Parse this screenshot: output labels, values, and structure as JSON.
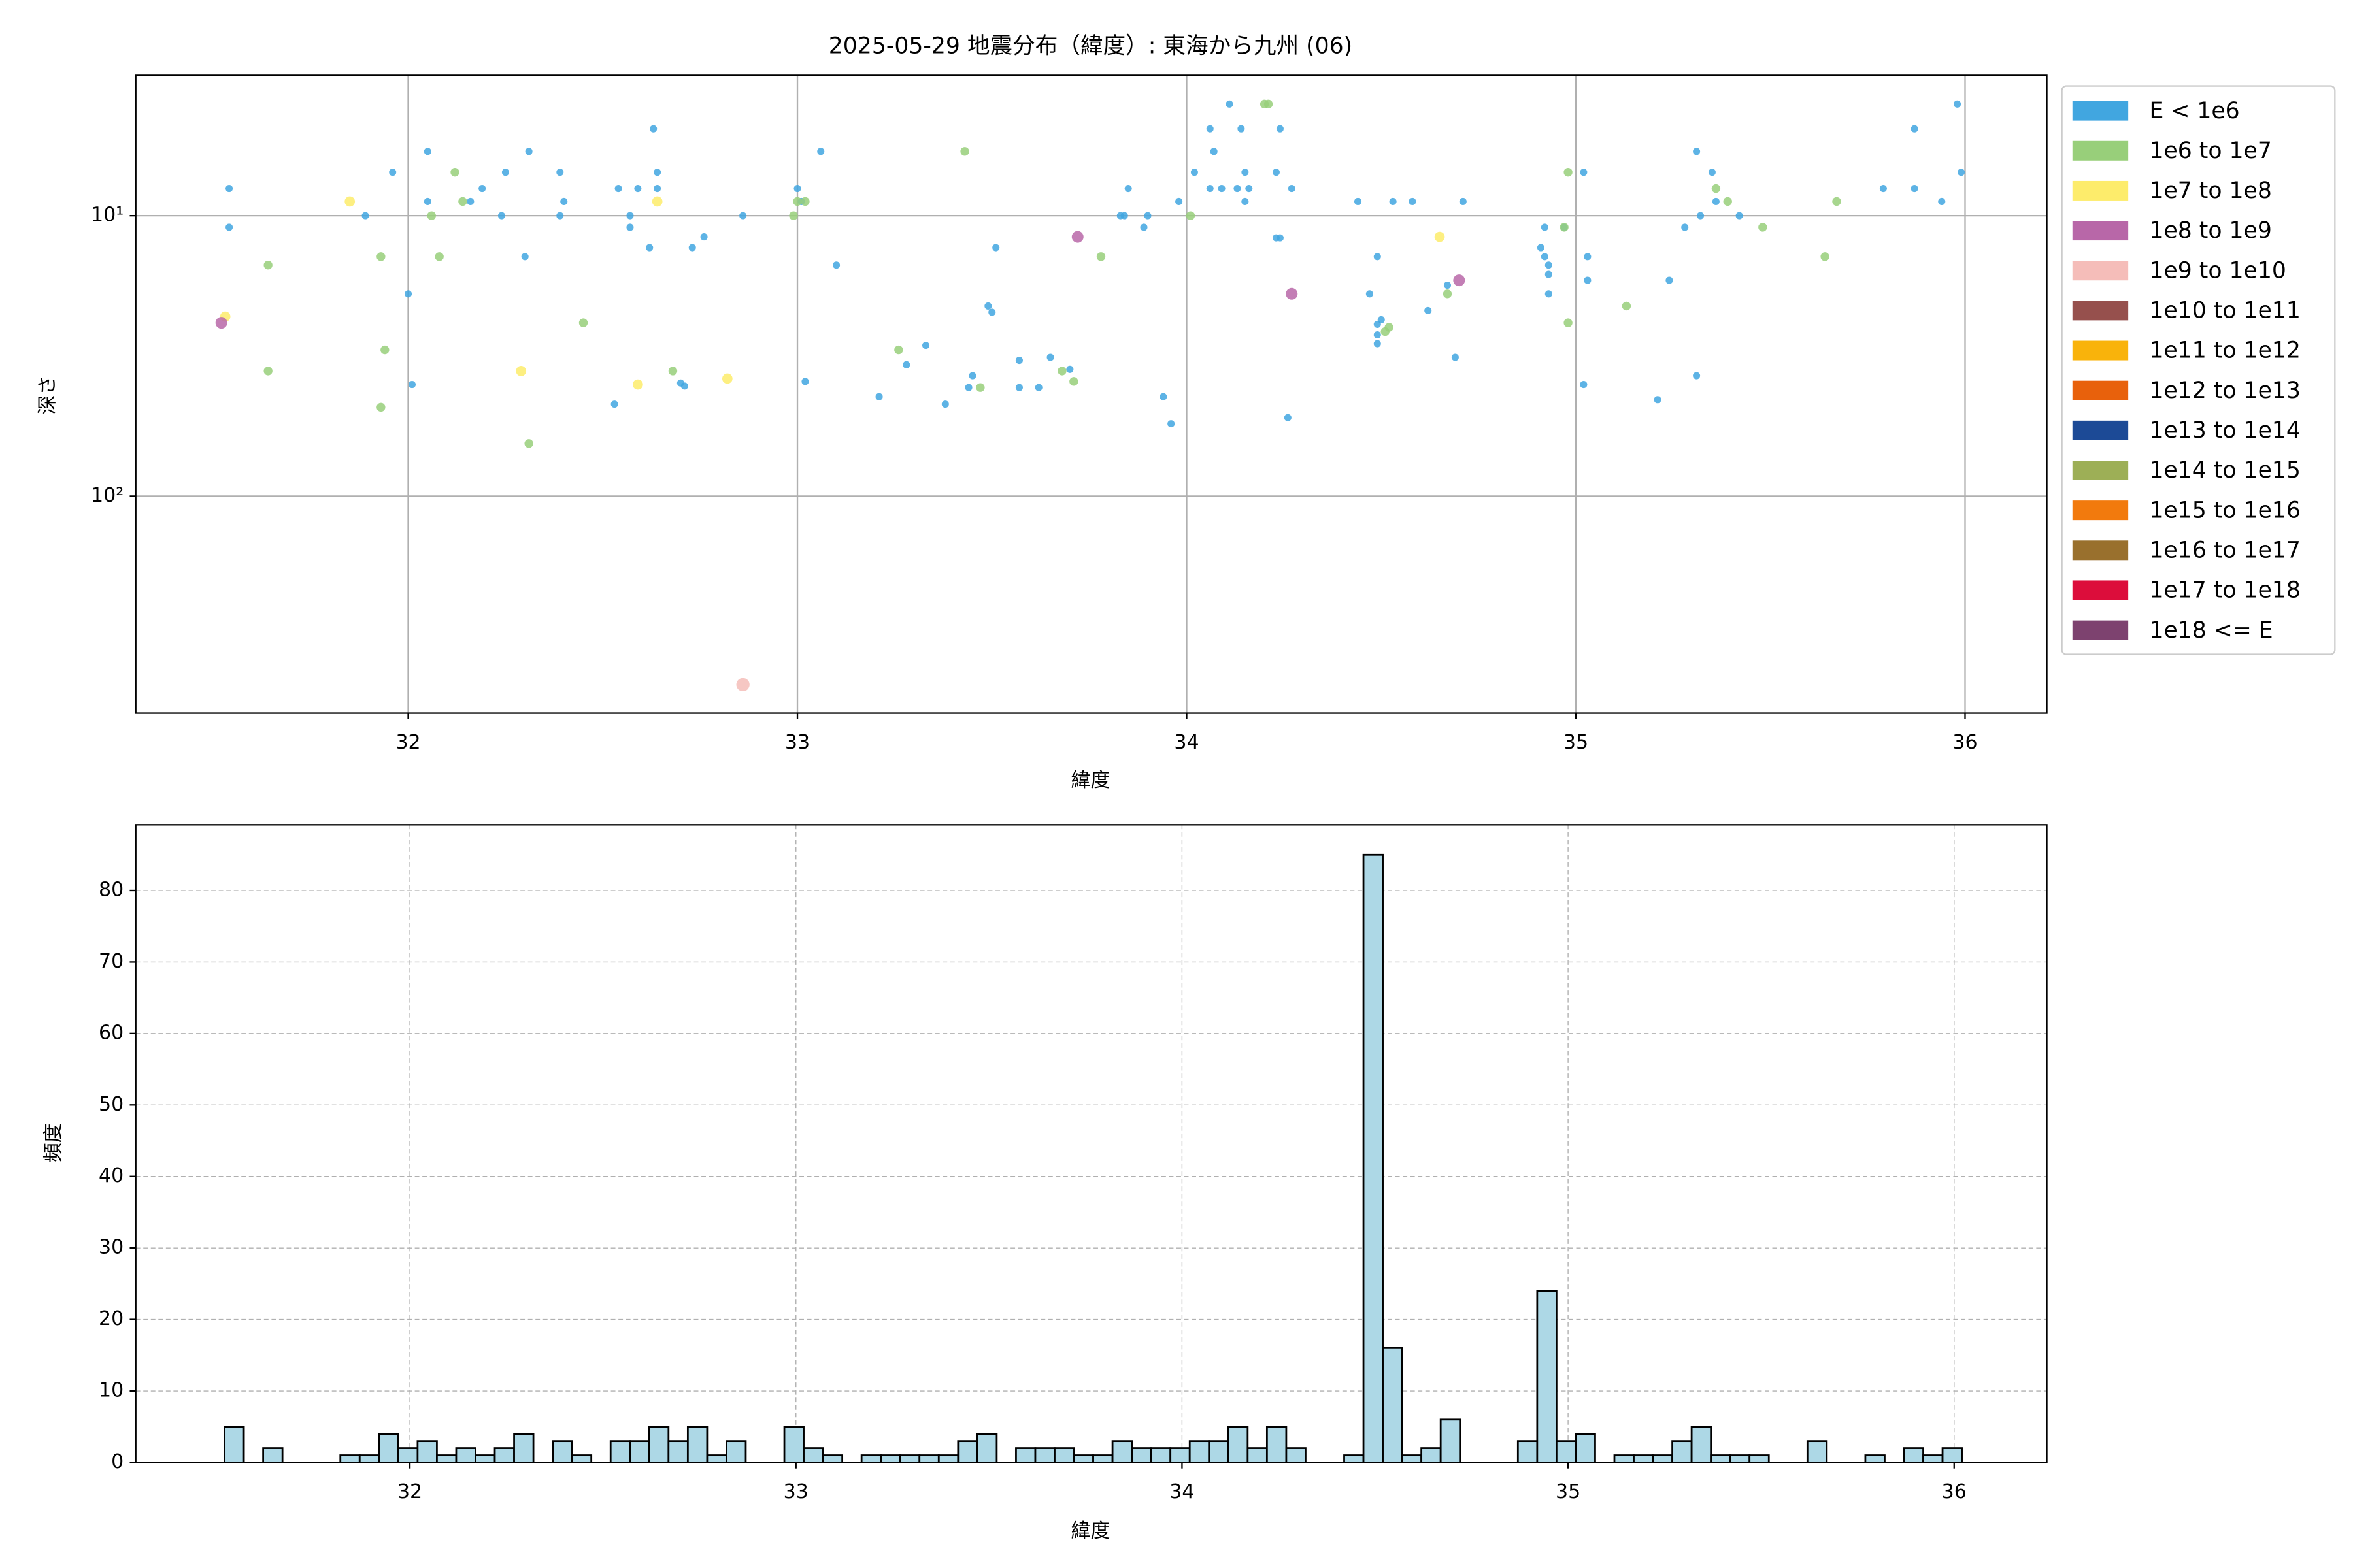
{
  "chart_data": [
    {
      "type": "scatter",
      "title": "2025-05-29 地震分布（緯度）: 東海から九州 (06)",
      "xlabel": "緯度",
      "ylabel": "深さ",
      "xlim": [
        31.3,
        36.21
      ],
      "ylim": [
        3.16,
        594
      ],
      "y_log": true,
      "y_inverted": true,
      "xticks": [
        32,
        33,
        34,
        35,
        36
      ],
      "yticks": [
        {
          "value": 10,
          "label": "10¹"
        },
        {
          "value": 100,
          "label": "10²"
        }
      ],
      "grid": true,
      "legend": "outside-right",
      "series": [
        {
          "name": "E < 1e6",
          "color": "#41a6e0",
          "x": [
            31.54,
            31.54,
            31.89,
            31.96,
            32.0,
            32.01,
            32.05,
            32.05,
            32.16,
            32.19,
            32.25,
            32.24,
            32.31,
            32.3,
            32.39,
            32.4,
            32.39,
            32.53,
            32.54,
            32.57,
            32.57,
            32.59,
            32.62,
            32.63,
            32.64,
            32.64,
            32.7,
            32.71,
            32.73,
            32.76,
            32.86,
            33.0,
            33.01,
            33.02,
            33.06,
            33.1,
            33.21,
            33.28,
            33.33,
            33.38,
            33.44,
            33.45,
            33.49,
            33.5,
            33.51,
            33.57,
            33.57,
            33.62,
            33.65,
            33.7,
            33.83,
            33.85,
            33.84,
            33.89,
            33.9,
            33.94,
            33.96,
            33.98,
            34.02,
            34.06,
            34.06,
            34.07,
            34.09,
            34.11,
            34.13,
            34.14,
            34.15,
            34.15,
            34.16,
            34.23,
            34.24,
            34.23,
            34.24,
            34.27,
            34.26,
            34.44,
            34.47,
            34.49,
            34.49,
            34.49,
            34.49,
            34.5,
            34.53,
            34.58,
            34.62,
            34.67,
            34.69,
            34.71,
            34.92,
            34.91,
            34.92,
            34.93,
            34.93,
            34.93,
            34.97,
            35.02,
            35.03,
            35.03,
            35.02,
            35.21,
            35.24,
            35.28,
            35.31,
            35.32,
            35.31,
            35.35,
            35.36,
            35.42,
            35.79,
            35.87,
            35.87,
            35.94,
            35.98,
            35.99
          ],
          "values": [
            8.0,
            11.0,
            10,
            7.0,
            19.0,
            40.0,
            5.9,
            8.9,
            8.9,
            8.0,
            7.0,
            10,
            5.9,
            14.0,
            7.0,
            8.9,
            10,
            47.0,
            8.0,
            10,
            11.0,
            8.0,
            13.0,
            4.9,
            7.0,
            8.0,
            39.5,
            40.5,
            13.0,
            11.9,
            10,
            8.0,
            8.9,
            39.0,
            5.9,
            15.0,
            44.2,
            34.0,
            29.0,
            47.0,
            41.0,
            37.2,
            21.0,
            22.1,
            13.0,
            32.8,
            41.0,
            41.0,
            32.0,
            35.3,
            10,
            8.0,
            10,
            11.0,
            10,
            44.2,
            55.2,
            8.9,
            7.0,
            4.9,
            8.0,
            5.9,
            8.0,
            4.0,
            8.0,
            4.9,
            7.0,
            8.9,
            8.0,
            12.0,
            4.9,
            7.0,
            12.0,
            8.0,
            52.5,
            8.9,
            19.0,
            14.0,
            26.6,
            28.6,
            24.4,
            23.5,
            8.9,
            8.9,
            21.8,
            17.7,
            32.0,
            8.9,
            11.0,
            13.0,
            14.0,
            15.0,
            16.2,
            19.0,
            11.0,
            7.0,
            14.0,
            17.0,
            40.0,
            45.3,
            17.0,
            11.0,
            5.9,
            10,
            37.2,
            7.0,
            8.9,
            10,
            8.0,
            4.9,
            8.0,
            8.9,
            4.0,
            7.0
          ]
        },
        {
          "name": "1e6 to 1e7",
          "color": "#98cf7a",
          "x": [
            31.64,
            31.64,
            31.93,
            31.94,
            31.93,
            32.06,
            32.08,
            32.12,
            32.14,
            32.31,
            32.45,
            32.68,
            32.99,
            33.0,
            33.02,
            33.26,
            33.43,
            33.47,
            33.68,
            33.71,
            33.78,
            34.01,
            34.2,
            34.21,
            34.51,
            34.52,
            34.67,
            34.97,
            34.98,
            34.98,
            35.13,
            35.36,
            35.39,
            35.48,
            35.64,
            35.67
          ],
          "values": [
            15.0,
            35.8,
            14.0,
            30.1,
            48.2,
            10,
            14.0,
            7.0,
            8.9,
            64.9,
            24.1,
            35.8,
            10,
            8.9,
            8.9,
            30.1,
            5.9,
            41.0,
            35.8,
            39.0,
            14.0,
            10,
            4.0,
            4.0,
            25.9,
            25.0,
            19.0,
            11.0,
            7.0,
            24.1,
            21.0,
            8.0,
            8.9,
            11.0,
            14.0,
            8.9
          ]
        },
        {
          "name": "1e7 to 1e8",
          "color": "#fdec6b",
          "x": [
            31.53,
            31.85,
            32.29,
            32.59,
            32.64,
            32.82,
            34.65
          ],
          "values": [
            22.9,
            8.9,
            35.8,
            40.0,
            8.9,
            38.1,
            11.9
          ]
        },
        {
          "name": "1e8 to 1e9",
          "color": "#b867a8",
          "x": [
            31.52,
            33.72,
            34.27,
            34.7
          ],
          "values": [
            24.1,
            11.9,
            19.0,
            17.0
          ]
        },
        {
          "name": "1e9 to 1e10",
          "color": "#f5bdb9",
          "x": [
            32.86
          ],
          "values": [
            470
          ]
        },
        {
          "name": "1e10 to 1e11",
          "color": "#96504d",
          "x": [],
          "values": []
        },
        {
          "name": "1e11 to 1e12",
          "color": "#f9b30b",
          "x": [],
          "values": []
        },
        {
          "name": "1e12 to 1e13",
          "color": "#e8610c",
          "x": [],
          "values": []
        },
        {
          "name": "1e13 to 1e14",
          "color": "#1c4a96",
          "x": [],
          "values": []
        },
        {
          "name": "1e14 to 1e15",
          "color": "#9daf56",
          "x": [],
          "values": []
        },
        {
          "name": "1e15 to 1e16",
          "color": "#f27a0d",
          "x": [],
          "values": []
        },
        {
          "name": "1e16 to 1e17",
          "color": "#99702d",
          "x": [],
          "values": []
        },
        {
          "name": "1e17 to 1e18",
          "color": "#dc0d3b",
          "x": [],
          "values": []
        },
        {
          "name": "1e18 <= E",
          "color": "#7d426f",
          "x": [],
          "values": []
        }
      ]
    },
    {
      "type": "histogram",
      "xlabel": "緯度",
      "ylabel": "頻度",
      "color": "#add8e6",
      "edgecolor": "#000000",
      "xlim": [
        31.29,
        36.24
      ],
      "ylim": [
        0,
        89.2
      ],
      "xticks": [
        32,
        33,
        34,
        35,
        36
      ],
      "yticks": [
        0,
        10,
        20,
        30,
        40,
        50,
        60,
        70,
        80
      ],
      "grid": true,
      "bins": [
        31.52,
        31.57,
        31.62,
        31.67,
        31.72,
        31.77,
        31.82,
        31.87,
        31.92,
        31.97,
        32.02,
        32.07,
        32.12,
        32.17,
        32.22,
        32.27,
        32.32,
        32.37,
        32.42,
        32.47,
        32.52,
        32.57,
        32.62,
        32.67,
        32.72,
        32.77,
        32.82,
        32.87,
        32.92,
        32.97,
        33.02,
        33.07,
        33.12,
        33.17,
        33.22,
        33.27,
        33.32,
        33.37,
        33.42,
        33.47,
        33.52,
        33.57,
        33.62,
        33.67,
        33.72,
        33.77,
        33.82,
        33.87,
        33.92,
        33.97,
        34.02,
        34.07,
        34.12,
        34.17,
        34.22,
        34.27,
        34.32,
        34.37,
        34.42,
        34.47,
        34.52,
        34.57,
        34.62,
        34.67,
        34.72,
        34.77,
        34.82,
        34.87,
        34.92,
        34.97,
        35.02,
        35.07,
        35.12,
        35.17,
        35.22,
        35.27,
        35.32,
        35.37,
        35.42,
        35.47,
        35.52,
        35.57,
        35.62,
        35.67,
        35.72,
        35.77,
        35.82,
        35.87,
        35.92,
        35.97,
        36.02
      ],
      "values": [
        5,
        0,
        2,
        0,
        0,
        0,
        1,
        1,
        4,
        2,
        3,
        1,
        2,
        1,
        2,
        4,
        0,
        3,
        1,
        0,
        3,
        3,
        5,
        3,
        5,
        1,
        3,
        0,
        0,
        5,
        2,
        1,
        0,
        1,
        1,
        1,
        1,
        1,
        3,
        4,
        0,
        2,
        2,
        2,
        1,
        1,
        3,
        2,
        2,
        2,
        3,
        3,
        5,
        2,
        5,
        2,
        0,
        0,
        1,
        85,
        16,
        1,
        2,
        6,
        0,
        0,
        0,
        3,
        24,
        3,
        4,
        0,
        1,
        1,
        1,
        3,
        5,
        1,
        1,
        1,
        0,
        0,
        3,
        0,
        0,
        1,
        0,
        2,
        1,
        2
      ]
    }
  ]
}
